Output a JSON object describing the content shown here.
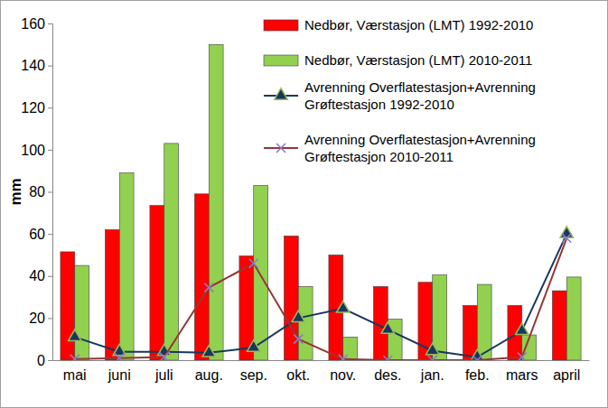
{
  "chart_data": {
    "type": "bar",
    "ylabel": "mm",
    "categories": [
      "mai",
      "juni",
      "juli",
      "aug.",
      "sep.",
      "okt.",
      "nov.",
      "des.",
      "jan.",
      "feb.",
      "mars",
      "april"
    ],
    "ylim": [
      0,
      160
    ],
    "yticks": [
      0,
      20,
      40,
      60,
      80,
      100,
      120,
      140,
      160
    ],
    "grid": false,
    "legend": "top-right",
    "series": [
      {
        "name": "Nedbør, Værstasjon (LMT) 1992-2010",
        "type": "bar",
        "color": "#ff0000",
        "values": [
          51.5,
          62,
          73.5,
          79,
          49.5,
          59,
          50,
          35,
          37,
          26,
          26,
          33
        ]
      },
      {
        "name": "Nedbør, Værstasjon (LMT) 2010-2011",
        "type": "bar",
        "color": "#92d050",
        "values": [
          45,
          89,
          103,
          150,
          83,
          35,
          11,
          19.5,
          40.5,
          36,
          12,
          39.5
        ]
      },
      {
        "name": "Avrenning Overflatestasjon+Avrenning Grøftestasjon 1992-2010",
        "type": "line",
        "color": "#17375e",
        "marker": "triangle",
        "values": [
          11,
          4,
          4,
          3.5,
          6,
          20,
          24.5,
          14.5,
          4.5,
          1.5,
          14,
          60
        ]
      },
      {
        "name": "Avrenning Overflatestasjon+Avrenning Grøftestasjon 2010-2011",
        "type": "line",
        "color": "#953735",
        "marker": "x",
        "values": [
          0.5,
          1,
          1.5,
          34.5,
          46,
          10,
          0.5,
          0,
          0,
          0,
          1.5,
          58
        ]
      }
    ]
  }
}
